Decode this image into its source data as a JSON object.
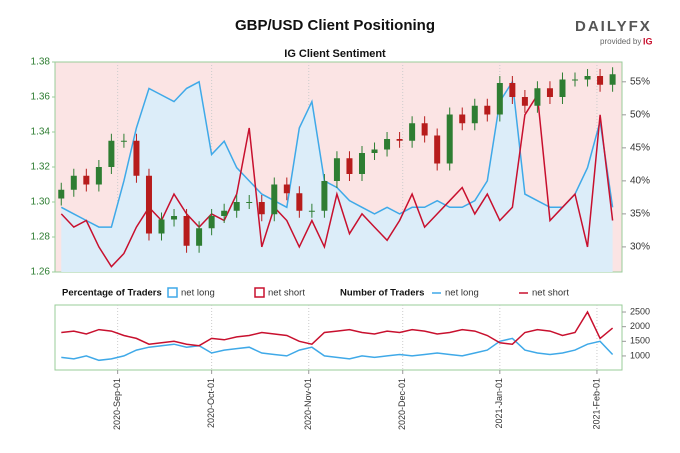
{
  "title": "GBP/USD Client Positioning",
  "logo": {
    "brand": "DAILYFX",
    "tagline": "provided by",
    "ig": "IG"
  },
  "chart_data": [
    {
      "type": "candlestick",
      "subtitle": "IG Client Sentiment",
      "x": [
        "2020-Aug-14",
        "2020-Aug-18",
        "2020-Aug-22",
        "2020-Aug-26",
        "2020-Aug-30",
        "2020-Sep-03",
        "2020-Sep-07",
        "2020-Sep-11",
        "2020-Sep-15",
        "2020-Sep-19",
        "2020-Sep-23",
        "2020-Sep-27",
        "2020-Oct-01",
        "2020-Oct-05",
        "2020-Oct-09",
        "2020-Oct-13",
        "2020-Oct-17",
        "2020-Oct-21",
        "2020-Oct-25",
        "2020-Oct-29",
        "2020-Nov-02",
        "2020-Nov-06",
        "2020-Nov-10",
        "2020-Nov-14",
        "2020-Nov-18",
        "2020-Nov-22",
        "2020-Nov-26",
        "2020-Nov-30",
        "2020-Dec-04",
        "2020-Dec-08",
        "2020-Dec-12",
        "2020-Dec-16",
        "2020-Dec-20",
        "2020-Dec-24",
        "2020-Dec-28",
        "2021-Jan-01",
        "2021-Jan-05",
        "2021-Jan-09",
        "2021-Jan-13",
        "2021-Jan-17",
        "2021-Jan-21",
        "2021-Jan-25",
        "2021-Jan-29",
        "2021-Feb-02",
        "2021-Feb-06"
      ],
      "open": [
        1.302,
        1.307,
        1.315,
        1.31,
        1.32,
        1.335,
        1.335,
        1.315,
        1.282,
        1.29,
        1.292,
        1.275,
        1.285,
        1.292,
        1.295,
        1.3,
        1.3,
        1.293,
        1.31,
        1.305,
        1.295,
        1.295,
        1.312,
        1.325,
        1.316,
        1.328,
        1.33,
        1.336,
        1.335,
        1.345,
        1.338,
        1.322,
        1.35,
        1.345,
        1.355,
        1.35,
        1.368,
        1.36,
        1.355,
        1.365,
        1.36,
        1.37,
        1.37,
        1.372,
        1.367
      ],
      "high": [
        1.311,
        1.319,
        1.319,
        1.324,
        1.339,
        1.339,
        1.339,
        1.319,
        1.294,
        1.296,
        1.296,
        1.289,
        1.296,
        1.299,
        1.304,
        1.304,
        1.304,
        1.314,
        1.314,
        1.309,
        1.299,
        1.316,
        1.329,
        1.329,
        1.332,
        1.334,
        1.34,
        1.34,
        1.349,
        1.349,
        1.342,
        1.354,
        1.354,
        1.359,
        1.359,
        1.372,
        1.372,
        1.364,
        1.369,
        1.369,
        1.374,
        1.374,
        1.376,
        1.376,
        1.377
      ],
      "low": [
        1.298,
        1.303,
        1.306,
        1.306,
        1.316,
        1.331,
        1.311,
        1.278,
        1.278,
        1.286,
        1.271,
        1.271,
        1.281,
        1.288,
        1.291,
        1.296,
        1.289,
        1.289,
        1.301,
        1.291,
        1.291,
        1.291,
        1.308,
        1.312,
        1.312,
        1.324,
        1.326,
        1.331,
        1.331,
        1.334,
        1.318,
        1.318,
        1.341,
        1.341,
        1.346,
        1.346,
        1.356,
        1.351,
        1.351,
        1.356,
        1.356,
        1.366,
        1.366,
        1.363,
        1.363
      ],
      "close": [
        1.307,
        1.315,
        1.31,
        1.32,
        1.335,
        1.335,
        1.315,
        1.282,
        1.29,
        1.292,
        1.275,
        1.285,
        1.292,
        1.295,
        1.3,
        1.3,
        1.293,
        1.31,
        1.305,
        1.295,
        1.295,
        1.312,
        1.325,
        1.316,
        1.328,
        1.33,
        1.336,
        1.335,
        1.345,
        1.338,
        1.322,
        1.35,
        1.345,
        1.355,
        1.35,
        1.368,
        1.36,
        1.355,
        1.365,
        1.36,
        1.37,
        1.37,
        1.372,
        1.367,
        1.373
      ],
      "up_color": "#2e7d32",
      "down_color": "#b71c1c",
      "xlim": [
        "2020-Aug-12",
        "2021-Feb-09"
      ],
      "ylim": [
        1.26,
        1.38
      ],
      "yticks": [
        1.26,
        1.28,
        {
          "value": 1.3,
          "label": "1.30"
        },
        1.32,
        1.34,
        1.36,
        1.38
      ],
      "y2lim": [
        26.2,
        58
      ],
      "y2ticks": [
        {
          "value": 30,
          "label": "30%"
        },
        {
          "value": 35,
          "label": "35%"
        },
        {
          "value": 40,
          "label": "40%"
        },
        {
          "value": 45,
          "label": "45%"
        },
        {
          "value": 50,
          "label": "50%"
        },
        {
          "value": 55,
          "label": "55%"
        }
      ],
      "legend_title": "Percentage of Traders",
      "series": [
        {
          "name": "net long",
          "color": "#3fa9e8",
          "axis": "y2",
          "values": [
            36,
            35,
            34,
            33,
            33,
            40,
            48,
            54,
            53,
            52,
            54,
            55,
            44,
            46,
            42,
            40,
            38,
            37,
            36,
            48,
            52,
            40,
            39,
            37,
            36,
            35,
            36,
            35,
            36,
            36,
            37,
            36,
            36,
            37,
            40,
            52,
            55,
            38,
            37,
            36,
            36,
            38,
            42,
            49,
            36
          ]
        },
        {
          "name": "net short",
          "color": "#c8102e",
          "axis": "y2",
          "values": [
            35,
            33,
            34,
            30,
            27,
            29,
            33,
            36,
            34,
            38,
            35,
            33,
            35,
            34,
            38,
            48,
            30,
            36,
            34,
            30,
            34,
            30,
            38,
            32,
            35,
            33,
            31,
            34,
            38,
            33,
            35,
            37,
            39,
            35,
            38,
            34,
            36,
            50,
            53,
            34,
            36,
            38,
            30,
            50,
            34
          ]
        }
      ]
    },
    {
      "type": "line",
      "xlim": [
        "2020-Aug-12",
        "2021-Feb-09"
      ],
      "xticks": [
        "2020-Sep-01",
        "2020-Oct-01",
        "2020-Nov-01",
        "2020-Dec-01",
        "2021-Jan-01",
        "2021-Feb-01"
      ],
      "ylim": [
        520,
        2740
      ],
      "yticks": [
        1000,
        1500,
        2000,
        2500
      ],
      "legend_title": "Number of Traders",
      "series": [
        {
          "name": "net long",
          "color": "#3fa9e8",
          "values": [
            950,
            900,
            1000,
            850,
            900,
            1000,
            1200,
            1300,
            1350,
            1400,
            1300,
            1350,
            1100,
            1200,
            1250,
            1300,
            1100,
            1050,
            1000,
            1200,
            1300,
            1000,
            950,
            900,
            1000,
            950,
            1000,
            1050,
            1000,
            1050,
            1100,
            1050,
            1000,
            1100,
            1200,
            1500,
            1600,
            1200,
            1100,
            1050,
            1100,
            1200,
            1400,
            1500,
            1050
          ]
        },
        {
          "name": "net short",
          "color": "#c8102e",
          "values": [
            1800,
            1850,
            1750,
            1900,
            1850,
            1700,
            1600,
            1400,
            1450,
            1500,
            1400,
            1350,
            1600,
            1550,
            1650,
            1700,
            1800,
            1750,
            1700,
            1500,
            1400,
            1800,
            1850,
            1900,
            1800,
            1750,
            1850,
            1800,
            1900,
            1850,
            1750,
            1800,
            1900,
            1850,
            1700,
            1450,
            1400,
            1800,
            1900,
            1850,
            1700,
            1800,
            2500,
            1600,
            1950
          ]
        }
      ]
    }
  ]
}
